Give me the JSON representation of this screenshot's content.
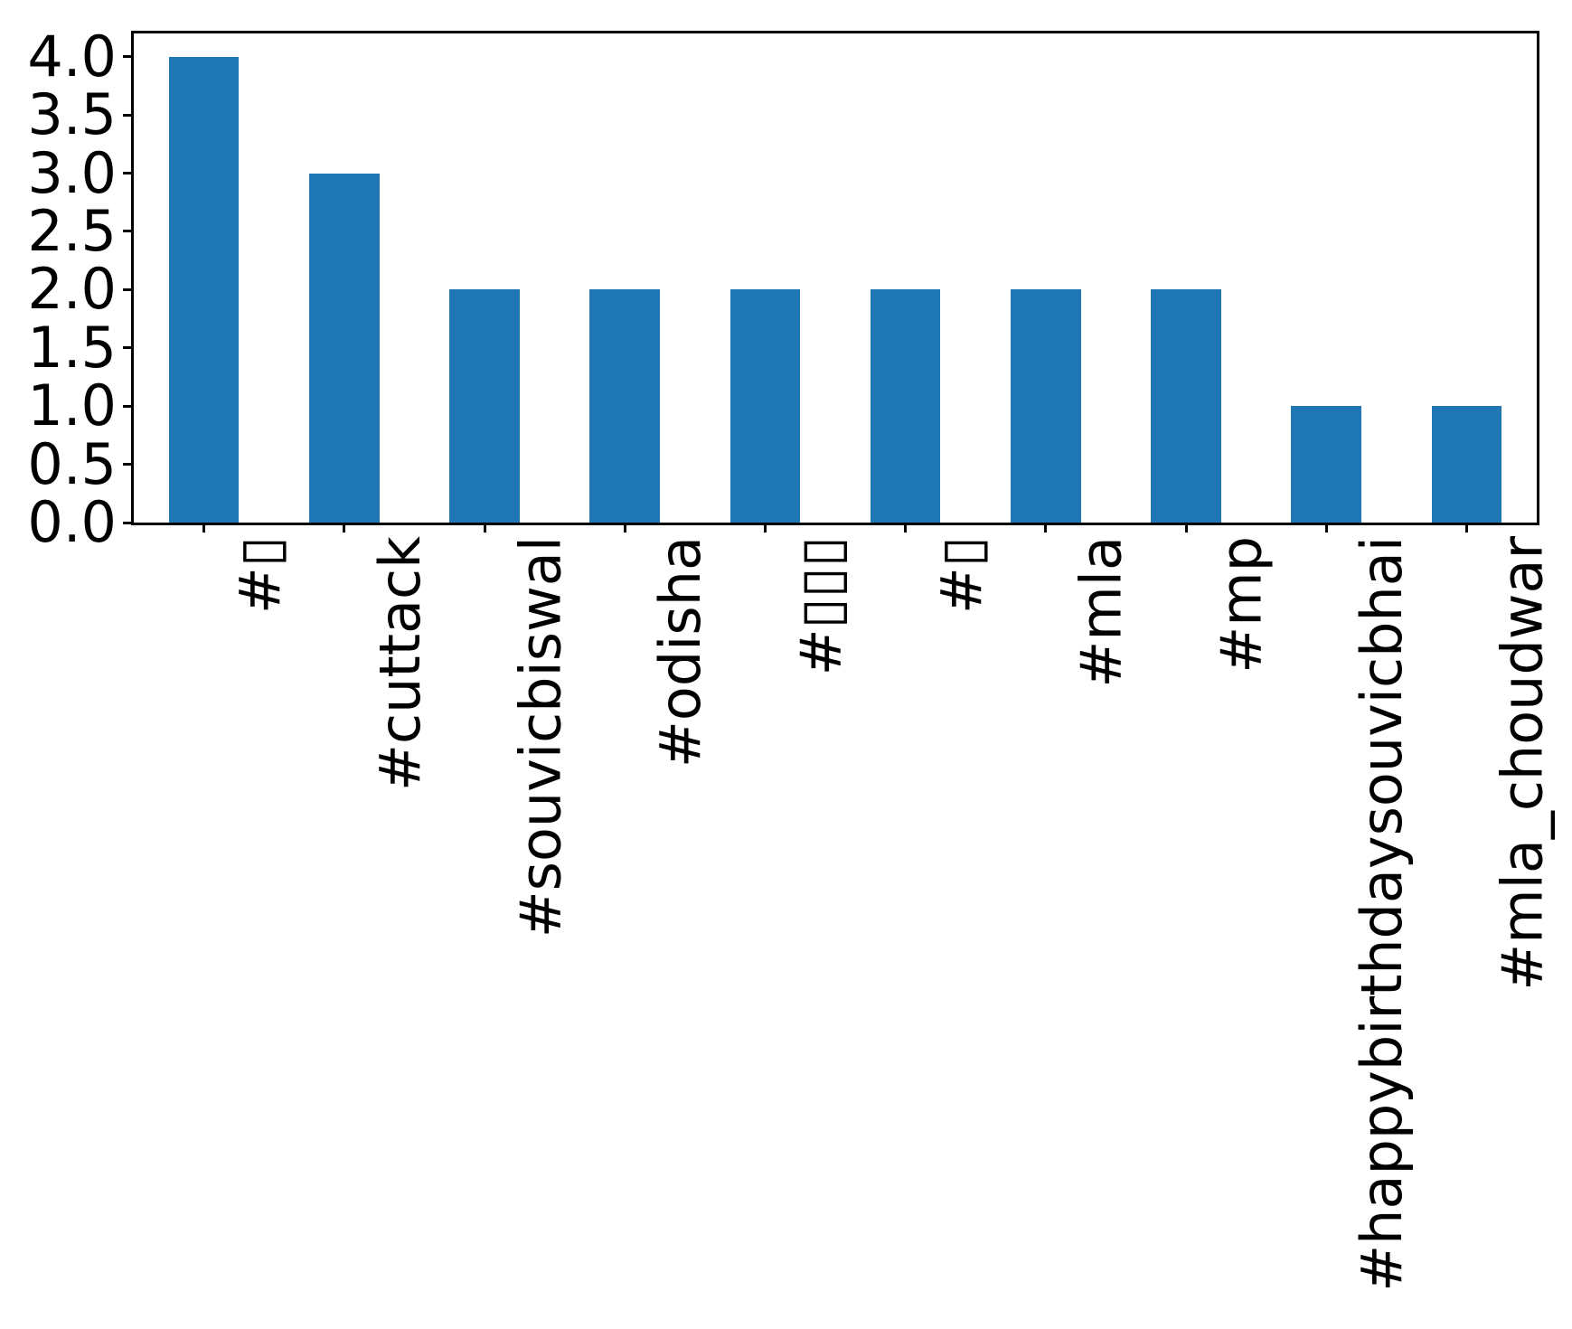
{
  "chart_data": {
    "type": "bar",
    "title": "",
    "xlabel": "",
    "ylabel": "",
    "categories": [
      "#▯",
      "#cuttack",
      "#souvicbiswal",
      "#odisha",
      "#▯▯▯",
      "#▯",
      "#mla",
      "#mp",
      "#happybirthdaysouvicbhai",
      "#mla_choudwar"
    ],
    "values": [
      4,
      3,
      2,
      2,
      2,
      2,
      2,
      2,
      1,
      1
    ],
    "ytick_labels": [
      "0.0",
      "0.5",
      "1.0",
      "1.5",
      "2.0",
      "2.5",
      "3.0",
      "3.5",
      "4.0"
    ],
    "ytick_values": [
      0.0,
      0.5,
      1.0,
      1.5,
      2.0,
      2.5,
      3.0,
      3.5,
      4.0
    ],
    "ylim": [
      0,
      4.2
    ],
    "bar_color": "#1f77b4",
    "bar_width_fraction": 0.5,
    "xtick_rotation_deg": 90,
    "grid": false,
    "legend": "none",
    "note": "missing-glyph (tofu) boxes appear in some hashtag labels"
  }
}
